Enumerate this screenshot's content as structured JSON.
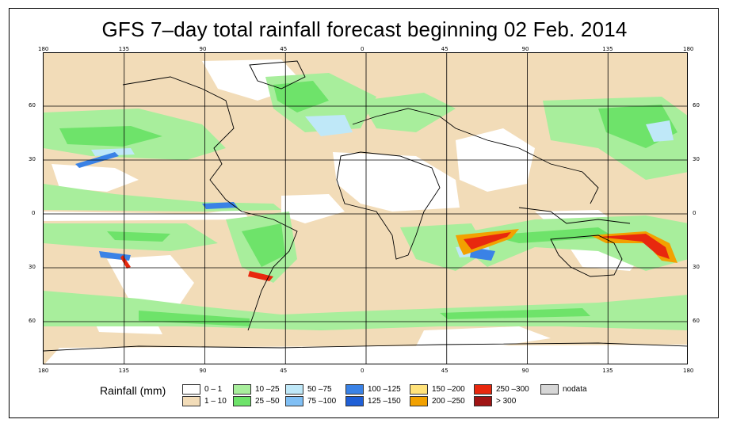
{
  "title": "GFS 7–day total rainfall forecast beginning 02 Feb. 2014",
  "lon_ticks": [
    "180",
    "135",
    "90",
    "45",
    "0",
    "45",
    "90",
    "135",
    "180"
  ],
  "lat_ticks_left": [
    "60",
    "30",
    "0",
    "30",
    "60"
  ],
  "lat_ticks_right": [
    "60",
    "30",
    "0",
    "30",
    "60"
  ],
  "legend": {
    "label": "Rainfall (mm)",
    "items": [
      {
        "label": "0 – 1",
        "color": "#ffffff"
      },
      {
        "label": "1 – 10",
        "color": "#f2dcb8"
      },
      {
        "label": "10 –25",
        "color": "#a8ee9c"
      },
      {
        "label": "25 –50",
        "color": "#6ee36a"
      },
      {
        "label": "50 –75",
        "color": "#bfe8f8"
      },
      {
        "label": "75 –100",
        "color": "#80bff4"
      },
      {
        "label": "100 –125",
        "color": "#3a82e6"
      },
      {
        "label": "125 –150",
        "color": "#1f5fd6"
      },
      {
        "label": "150 –200",
        "color": "#ffe27a"
      },
      {
        "label": "200 –250",
        "color": "#f2a100"
      },
      {
        "label": "250 –300",
        "color": "#e8280e"
      },
      {
        "label": "> 300",
        "color": "#a01414"
      },
      {
        "label": "nodata",
        "color": "#d6d6d6"
      }
    ]
  }
}
